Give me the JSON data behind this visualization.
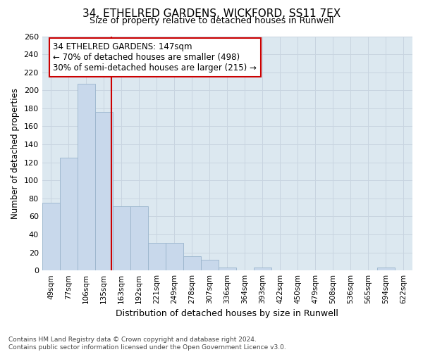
{
  "title": "34, ETHELRED GARDENS, WICKFORD, SS11 7EX",
  "subtitle": "Size of property relative to detached houses in Runwell",
  "xlabel": "Distribution of detached houses by size in Runwell",
  "ylabel": "Number of detached properties",
  "footer_line1": "Contains HM Land Registry data © Crown copyright and database right 2024.",
  "footer_line2": "Contains public sector information licensed under the Open Government Licence v3.0.",
  "categories": [
    "49sqm",
    "77sqm",
    "106sqm",
    "135sqm",
    "163sqm",
    "192sqm",
    "221sqm",
    "249sqm",
    "278sqm",
    "307sqm",
    "336sqm",
    "364sqm",
    "393sqm",
    "422sqm",
    "450sqm",
    "479sqm",
    "508sqm",
    "536sqm",
    "565sqm",
    "594sqm",
    "622sqm"
  ],
  "values": [
    75,
    125,
    207,
    176,
    71,
    71,
    31,
    31,
    16,
    12,
    3,
    0,
    3,
    0,
    0,
    0,
    0,
    0,
    0,
    3,
    0
  ],
  "bar_color": "#c8d8eb",
  "bar_edge_color": "#9ab4cc",
  "grid_color": "#c8d4e0",
  "plot_bg_color": "#dce8f0",
  "fig_bg_color": "#ffffff",
  "vline_x_index": 3.42,
  "vline_color": "#cc0000",
  "annotation_title": "34 ETHELRED GARDENS: 147sqm",
  "annotation_line1": "← 70% of detached houses are smaller (498)",
  "annotation_line2": "30% of semi-detached houses are larger (215) →",
  "annotation_box_color": "#ffffff",
  "annotation_box_edge_color": "#cc0000",
  "ylim": [
    0,
    260
  ],
  "yticks": [
    0,
    20,
    40,
    60,
    80,
    100,
    120,
    140,
    160,
    180,
    200,
    220,
    240,
    260
  ]
}
